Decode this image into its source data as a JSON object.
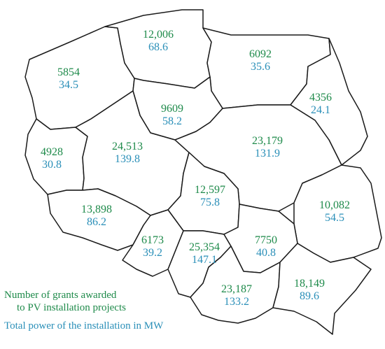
{
  "colors": {
    "grants": "#1e8a4a",
    "power": "#2a8fb8",
    "border": "#1a1a1a"
  },
  "regions": [
    {
      "id": "zachodniopomorskie",
      "grants": "5854",
      "power": "34.5"
    },
    {
      "id": "pomorskie",
      "grants": "12,006",
      "power": "68.6"
    },
    {
      "id": "warminsko-mazurskie",
      "grants": "6092",
      "power": "35.6"
    },
    {
      "id": "podlaskie",
      "grants": "4356",
      "power": "24.1"
    },
    {
      "id": "kujawsko-pomorskie",
      "grants": "9609",
      "power": "58.2"
    },
    {
      "id": "lubuskie",
      "grants": "4928",
      "power": "30.8"
    },
    {
      "id": "wielkopolskie",
      "grants": "24,513",
      "power": "139.8"
    },
    {
      "id": "mazowieckie",
      "grants": "23,179",
      "power": "131.9"
    },
    {
      "id": "lodzkie",
      "grants": "12,597",
      "power": "75.8"
    },
    {
      "id": "dolnoslaskie",
      "grants": "13,898",
      "power": "86.2"
    },
    {
      "id": "lubelskie",
      "grants": "10,082",
      "power": "54.5"
    },
    {
      "id": "opolskie",
      "grants": "6173",
      "power": "39.2"
    },
    {
      "id": "slaskie",
      "grants": "25,354",
      "power": "147.1"
    },
    {
      "id": "swietokrzyskie",
      "grants": "7750",
      "power": "40.8"
    },
    {
      "id": "malopolskie",
      "grants": "23,187",
      "power": "133.2"
    },
    {
      "id": "podkarpackie",
      "grants": "18,149",
      "power": "89.6"
    }
  ],
  "legend": {
    "grants_line1": "Number of grants awarded",
    "grants_line2": "to PV installation projects",
    "power_line": "Total power of the installation in MW"
  }
}
